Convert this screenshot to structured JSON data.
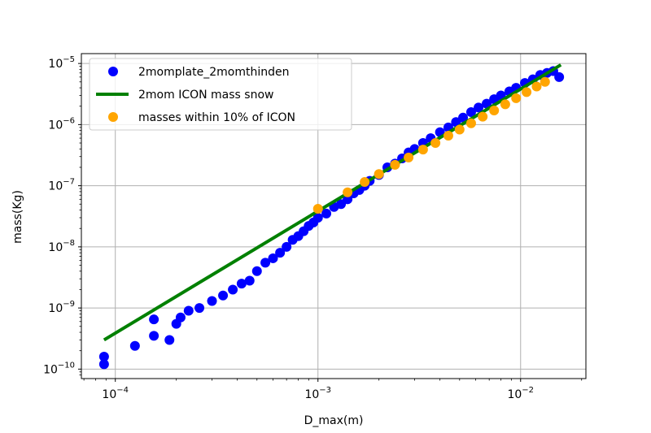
{
  "chart_data": {
    "type": "scatter",
    "xlabel": "D_max(m)",
    "ylabel": "mass(Kg)",
    "xscale": "log",
    "yscale": "log",
    "xlim": [
      6.8e-05,
      0.021
    ],
    "ylim": [
      7e-11,
      1.45e-05
    ],
    "grid": true,
    "legend_position": "top-left",
    "x_ticks": [
      {
        "base": "10",
        "exp": "−4",
        "value": 0.0001
      },
      {
        "base": "10",
        "exp": "−3",
        "value": 0.001
      },
      {
        "base": "10",
        "exp": "−2",
        "value": 0.01
      }
    ],
    "y_ticks": [
      {
        "base": "10",
        "exp": "−10",
        "value": 1e-10
      },
      {
        "base": "10",
        "exp": "−9",
        "value": 1e-09
      },
      {
        "base": "10",
        "exp": "−8",
        "value": 1e-08
      },
      {
        "base": "10",
        "exp": "−7",
        "value": 1e-07
      },
      {
        "base": "10",
        "exp": "−6",
        "value": 1e-06
      },
      {
        "base": "10",
        "exp": "−5",
        "value": 1e-05
      }
    ],
    "series": [
      {
        "name": "2momplate_2momthinden",
        "kind": "scatter",
        "color": "#0000ff",
        "points": [
          [
            8.8e-05,
            1.2e-10
          ],
          [
            8.8e-05,
            1.6e-10
          ],
          [
            0.000125,
            2.4e-10
          ],
          [
            0.000155,
            3.5e-10
          ],
          [
            0.000155,
            6.5e-10
          ],
          [
            0.000185,
            3e-10
          ],
          [
            0.0002,
            5.5e-10
          ],
          [
            0.00021,
            7e-10
          ],
          [
            0.00023,
            9e-10
          ],
          [
            0.00026,
            1e-09
          ],
          [
            0.0003,
            1.3e-09
          ],
          [
            0.00034,
            1.6e-09
          ],
          [
            0.00038,
            2e-09
          ],
          [
            0.00042,
            2.5e-09
          ],
          [
            0.00046,
            2.8e-09
          ],
          [
            0.0005,
            4e-09
          ],
          [
            0.00055,
            5.5e-09
          ],
          [
            0.0006,
            6.5e-09
          ],
          [
            0.00065,
            8e-09
          ],
          [
            0.0007,
            1e-08
          ],
          [
            0.00075,
            1.3e-08
          ],
          [
            0.0008,
            1.5e-08
          ],
          [
            0.00085,
            1.8e-08
          ],
          [
            0.0009,
            2.2e-08
          ],
          [
            0.00095,
            2.5e-08
          ],
          [
            0.001,
            3e-08
          ],
          [
            0.0011,
            3.5e-08
          ],
          [
            0.0012,
            4.5e-08
          ],
          [
            0.0013,
            5e-08
          ],
          [
            0.0014,
            6e-08
          ],
          [
            0.0015,
            7.5e-08
          ],
          [
            0.0016,
            8.5e-08
          ],
          [
            0.0017,
            1e-07
          ],
          [
            0.0018,
            1.2e-07
          ],
          [
            0.002,
            1.5e-07
          ],
          [
            0.0022,
            2e-07
          ],
          [
            0.0024,
            2.3e-07
          ],
          [
            0.0026,
            2.8e-07
          ],
          [
            0.0028,
            3.5e-07
          ],
          [
            0.003,
            4e-07
          ],
          [
            0.0033,
            5e-07
          ],
          [
            0.0036,
            6e-07
          ],
          [
            0.004,
            7.5e-07
          ],
          [
            0.0044,
            9e-07
          ],
          [
            0.0048,
            1.1e-06
          ],
          [
            0.0052,
            1.3e-06
          ],
          [
            0.0057,
            1.6e-06
          ],
          [
            0.0062,
            1.9e-06
          ],
          [
            0.0068,
            2.2e-06
          ],
          [
            0.0074,
            2.6e-06
          ],
          [
            0.008,
            3e-06
          ],
          [
            0.0088,
            3.5e-06
          ],
          [
            0.0095,
            4e-06
          ],
          [
            0.0105,
            4.8e-06
          ],
          [
            0.0115,
            5.5e-06
          ],
          [
            0.0125,
            6.5e-06
          ],
          [
            0.0135,
            7e-06
          ],
          [
            0.0145,
            7.5e-06
          ],
          [
            0.0155,
            6e-06
          ]
        ]
      },
      {
        "name": "2mom ICON mass snow",
        "kind": "line",
        "color": "#008000",
        "points": [
          [
            8.8e-05,
            3e-10
          ],
          [
            0.0158,
            9.5e-06
          ]
        ]
      },
      {
        "name": "masses within 10% of ICON",
        "kind": "scatter",
        "color": "#ffa500",
        "points": [
          [
            0.001,
            4.2e-08
          ],
          [
            0.0014,
            7.8e-08
          ],
          [
            0.0017,
            1.15e-07
          ],
          [
            0.002,
            1.55e-07
          ],
          [
            0.0024,
            2.2e-07
          ],
          [
            0.0028,
            2.9e-07
          ],
          [
            0.0033,
            3.9e-07
          ],
          [
            0.0038,
            5e-07
          ],
          [
            0.0044,
            6.6e-07
          ],
          [
            0.005,
            8.3e-07
          ],
          [
            0.0057,
            1.05e-06
          ],
          [
            0.0065,
            1.35e-06
          ],
          [
            0.0074,
            1.7e-06
          ],
          [
            0.0084,
            2.15e-06
          ],
          [
            0.0095,
            2.7e-06
          ],
          [
            0.0107,
            3.4e-06
          ],
          [
            0.012,
            4.2e-06
          ],
          [
            0.0132,
            5e-06
          ]
        ]
      }
    ]
  }
}
